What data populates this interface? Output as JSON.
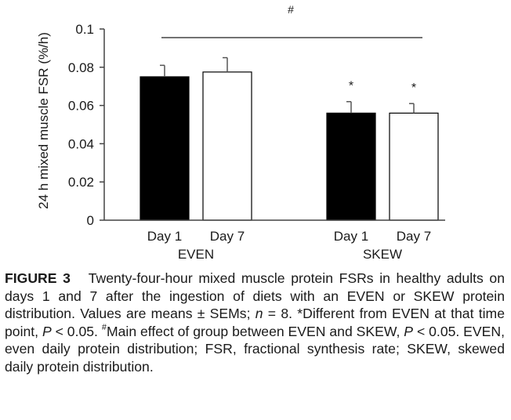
{
  "chart_data": {
    "type": "bar",
    "ylabel": "24 h mixed muscle FSR (%/h)",
    "ylim": [
      0,
      0.1
    ],
    "yticks": [
      "0",
      "0.02",
      "0.04",
      "0.06",
      "0.08",
      "0.1"
    ],
    "groups": [
      {
        "name": "EVEN",
        "bars": [
          {
            "label": "Day 1",
            "value": 0.075,
            "error": 0.006,
            "fill": "#000000",
            "marker": ""
          },
          {
            "label": "Day 7",
            "value": 0.0775,
            "error": 0.0075,
            "fill": "#ffffff",
            "marker": ""
          }
        ]
      },
      {
        "name": "SKEW",
        "bars": [
          {
            "label": "Day 1",
            "value": 0.056,
            "error": 0.006,
            "fill": "#000000",
            "marker": "*"
          },
          {
            "label": "Day 7",
            "value": 0.056,
            "error": 0.005,
            "fill": "#ffffff",
            "marker": "*"
          }
        ]
      }
    ],
    "bracket": {
      "symbol": "#",
      "level": 0.0955
    }
  },
  "caption": {
    "figure_label": "FIGURE 3",
    "t1": "Twenty-four-hour mixed muscle protein FSRs in healthy adults on days 1 and 7 after the ingestion of diets with an EVEN or SKEW protein distribution. Values are means ± SEMs; ",
    "n_symbol": "n",
    "t2": " = 8. *Different from EVEN at that time point, ",
    "p_symbol_1": "P",
    "t3": " < 0.05. ",
    "hash": "#",
    "t4": "Main effect of group between EVEN and SKEW, ",
    "p_symbol_2": "P",
    "t5": " < 0.05. EVEN, even daily protein distribution; FSR, fractional synthesis rate; SKEW, skewed daily protein distribution."
  }
}
